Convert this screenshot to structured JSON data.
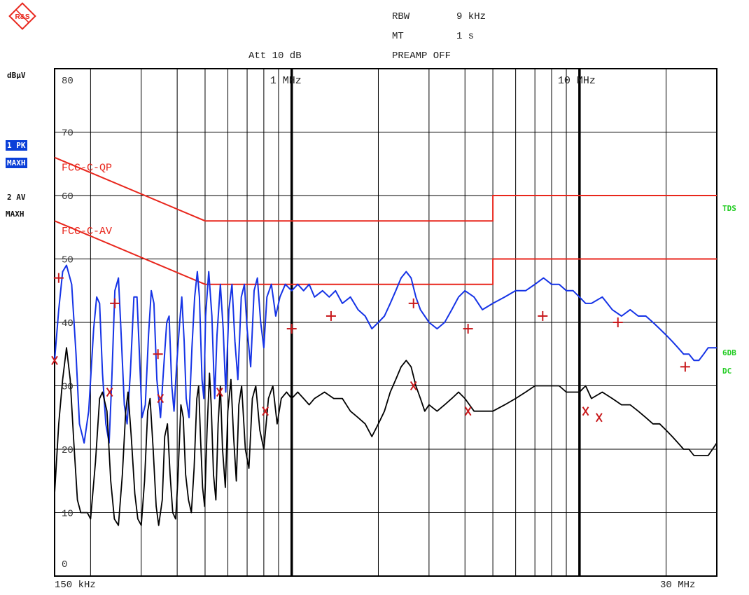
{
  "header": {
    "logo_text": "R&S",
    "att": "Att 10 dB",
    "rbw_label": "RBW",
    "rbw_value": "9 kHz",
    "mt_label": "MT",
    "mt_value": "1 s",
    "preamp": "PREAMP OFF"
  },
  "side_panel": {
    "unit": "dBµV",
    "trace1_line1": "1 PK",
    "trace1_line2": "MAXH",
    "trace2_line1": "2 AV",
    "trace2_line2": "MAXH",
    "right_label_1": "TDS",
    "right_label_2a": "6DB",
    "right_label_2b": "DC"
  },
  "colors": {
    "pk_trace": "#1533e6",
    "av_trace": "#000000",
    "limits": "#e8261c",
    "markers": "#c8191c",
    "side_labels": "#22cc22",
    "grid": "#000000"
  },
  "chart_data": {
    "type": "line",
    "x_scale": "log",
    "xlim_hz": [
      150000,
      30000000
    ],
    "ylim": [
      0,
      80
    ],
    "ylabel": "dBµV",
    "x_start_label": "150 kHz",
    "x_stop_label": "30 MHz",
    "decade_labels": [
      {
        "freq_hz": 1000000,
        "label": "1 MHz"
      },
      {
        "freq_hz": 10000000,
        "label": "10 MHz"
      }
    ],
    "y_ticks": [
      0,
      10,
      20,
      30,
      40,
      50,
      60,
      70,
      80
    ],
    "grid": true,
    "limit_lines": [
      {
        "name": "FCC-C-QP",
        "points": [
          [
            150000,
            66
          ],
          [
            500000,
            56
          ],
          [
            5000000,
            56
          ],
          [
            5000000,
            60
          ],
          [
            30000000,
            60
          ]
        ]
      },
      {
        "name": "FCC-C-AV",
        "points": [
          [
            150000,
            56
          ],
          [
            500000,
            46
          ],
          [
            5000000,
            46
          ],
          [
            5000000,
            50
          ],
          [
            30000000,
            50
          ]
        ]
      }
    ],
    "series": [
      {
        "name": "1 PK MAXH",
        "points": [
          [
            150000,
            34
          ],
          [
            155000,
            42
          ],
          [
            160000,
            48
          ],
          [
            165000,
            49
          ],
          [
            172000,
            46
          ],
          [
            178000,
            35
          ],
          [
            183000,
            24
          ],
          [
            190000,
            21
          ],
          [
            197000,
            26
          ],
          [
            205000,
            39
          ],
          [
            210000,
            44
          ],
          [
            215000,
            43
          ],
          [
            220000,
            32
          ],
          [
            226000,
            24
          ],
          [
            232000,
            21
          ],
          [
            237000,
            31
          ],
          [
            243000,
            45
          ],
          [
            250000,
            47
          ],
          [
            255000,
            39
          ],
          [
            262000,
            27
          ],
          [
            268000,
            24
          ],
          [
            275000,
            32
          ],
          [
            283000,
            44
          ],
          [
            290000,
            44
          ],
          [
            295000,
            36
          ],
          [
            302000,
            25
          ],
          [
            310000,
            27
          ],
          [
            318000,
            38
          ],
          [
            325000,
            45
          ],
          [
            332000,
            43
          ],
          [
            340000,
            31
          ],
          [
            350000,
            25
          ],
          [
            358000,
            32
          ],
          [
            368000,
            40
          ],
          [
            375000,
            41
          ],
          [
            383000,
            30
          ],
          [
            390000,
            26
          ],
          [
            398000,
            33
          ],
          [
            408000,
            40
          ],
          [
            415000,
            44
          ],
          [
            423000,
            37
          ],
          [
            430000,
            28
          ],
          [
            440000,
            25
          ],
          [
            450000,
            36
          ],
          [
            460000,
            44
          ],
          [
            470000,
            48
          ],
          [
            478000,
            44
          ],
          [
            488000,
            31
          ],
          [
            495000,
            28
          ],
          [
            502000,
            41
          ],
          [
            515000,
            48
          ],
          [
            528000,
            41
          ],
          [
            540000,
            28
          ],
          [
            550000,
            38
          ],
          [
            565000,
            46
          ],
          [
            578000,
            39
          ],
          [
            590000,
            29
          ],
          [
            605000,
            42
          ],
          [
            620000,
            46
          ],
          [
            635000,
            37
          ],
          [
            650000,
            31
          ],
          [
            668000,
            44
          ],
          [
            685000,
            46
          ],
          [
            700000,
            39
          ],
          [
            720000,
            33
          ],
          [
            740000,
            45
          ],
          [
            760000,
            47
          ],
          [
            780000,
            40
          ],
          [
            800000,
            36
          ],
          [
            820000,
            44
          ],
          [
            850000,
            46
          ],
          [
            880000,
            41
          ],
          [
            910000,
            44
          ],
          [
            950000,
            46
          ],
          [
            1000000,
            45
          ],
          [
            1050000,
            46
          ],
          [
            1100000,
            45
          ],
          [
            1150000,
            46
          ],
          [
            1200000,
            44
          ],
          [
            1280000,
            45
          ],
          [
            1350000,
            44
          ],
          [
            1420000,
            45
          ],
          [
            1500000,
            43
          ],
          [
            1600000,
            44
          ],
          [
            1700000,
            42
          ],
          [
            1800000,
            41
          ],
          [
            1900000,
            39
          ],
          [
            2000000,
            40
          ],
          [
            2100000,
            41
          ],
          [
            2200000,
            43
          ],
          [
            2300000,
            45
          ],
          [
            2400000,
            47
          ],
          [
            2500000,
            48
          ],
          [
            2600000,
            47
          ],
          [
            2700000,
            44
          ],
          [
            2800000,
            42
          ],
          [
            2900000,
            41
          ],
          [
            3000000,
            40
          ],
          [
            3200000,
            39
          ],
          [
            3400000,
            40
          ],
          [
            3600000,
            42
          ],
          [
            3800000,
            44
          ],
          [
            4000000,
            45
          ],
          [
            4300000,
            44
          ],
          [
            4600000,
            42
          ],
          [
            5000000,
            43
          ],
          [
            5500000,
            44
          ],
          [
            6000000,
            45
          ],
          [
            6500000,
            45
          ],
          [
            7000000,
            46
          ],
          [
            7500000,
            47
          ],
          [
            8000000,
            46
          ],
          [
            8500000,
            46
          ],
          [
            9000000,
            45
          ],
          [
            9500000,
            45
          ],
          [
            10000000,
            44
          ],
          [
            10500000,
            43
          ],
          [
            11000000,
            43
          ],
          [
            12000000,
            44
          ],
          [
            13000000,
            42
          ],
          [
            14000000,
            41
          ],
          [
            15000000,
            42
          ],
          [
            16000000,
            41
          ],
          [
            17000000,
            41
          ],
          [
            18000000,
            40
          ],
          [
            19000000,
            39
          ],
          [
            20000000,
            38
          ],
          [
            21000000,
            37
          ],
          [
            22000000,
            36
          ],
          [
            23000000,
            35
          ],
          [
            24000000,
            35
          ],
          [
            25000000,
            34
          ],
          [
            26000000,
            34
          ],
          [
            27000000,
            35
          ],
          [
            28000000,
            36
          ],
          [
            29000000,
            36
          ],
          [
            30000000,
            36
          ]
        ]
      },
      {
        "name": "2 AV MAXH",
        "points": [
          [
            150000,
            13
          ],
          [
            155000,
            24
          ],
          [
            160000,
            31
          ],
          [
            165000,
            36
          ],
          [
            170000,
            31
          ],
          [
            175000,
            21
          ],
          [
            180000,
            12
          ],
          [
            185000,
            10
          ],
          [
            195000,
            10
          ],
          [
            200000,
            9
          ],
          [
            208000,
            18
          ],
          [
            215000,
            28
          ],
          [
            220000,
            29
          ],
          [
            228000,
            26
          ],
          [
            235000,
            15
          ],
          [
            242000,
            9
          ],
          [
            250000,
            8
          ],
          [
            258000,
            16
          ],
          [
            265000,
            26
          ],
          [
            270000,
            29
          ],
          [
            277000,
            22
          ],
          [
            285000,
            13
          ],
          [
            292000,
            9
          ],
          [
            300000,
            8
          ],
          [
            308000,
            15
          ],
          [
            316000,
            26
          ],
          [
            322000,
            28
          ],
          [
            330000,
            20
          ],
          [
            338000,
            11
          ],
          [
            345000,
            8
          ],
          [
            355000,
            12
          ],
          [
            362000,
            22
          ],
          [
            370000,
            24
          ],
          [
            378000,
            16
          ],
          [
            386000,
            10
          ],
          [
            395000,
            9
          ],
          [
            402000,
            15
          ],
          [
            412000,
            27
          ],
          [
            420000,
            25
          ],
          [
            428000,
            16
          ],
          [
            438000,
            12
          ],
          [
            448000,
            10
          ],
          [
            458000,
            17
          ],
          [
            468000,
            28
          ],
          [
            475000,
            30
          ],
          [
            482000,
            22
          ],
          [
            490000,
            14
          ],
          [
            498000,
            11
          ],
          [
            508000,
            23
          ],
          [
            518000,
            32
          ],
          [
            525000,
            27
          ],
          [
            535000,
            16
          ],
          [
            545000,
            12
          ],
          [
            555000,
            24
          ],
          [
            565000,
            30
          ],
          [
            575000,
            20
          ],
          [
            588000,
            14
          ],
          [
            600000,
            26
          ],
          [
            615000,
            31
          ],
          [
            628000,
            22
          ],
          [
            642000,
            15
          ],
          [
            655000,
            27
          ],
          [
            670000,
            30
          ],
          [
            690000,
            20
          ],
          [
            710000,
            17
          ],
          [
            730000,
            28
          ],
          [
            750000,
            30
          ],
          [
            775000,
            23
          ],
          [
            800000,
            20
          ],
          [
            830000,
            28
          ],
          [
            860000,
            30
          ],
          [
            890000,
            24
          ],
          [
            920000,
            28
          ],
          [
            960000,
            29
          ],
          [
            1000000,
            28
          ],
          [
            1050000,
            29
          ],
          [
            1100000,
            28
          ],
          [
            1150000,
            27
          ],
          [
            1200000,
            28
          ],
          [
            1300000,
            29
          ],
          [
            1400000,
            28
          ],
          [
            1500000,
            28
          ],
          [
            1600000,
            26
          ],
          [
            1700000,
            25
          ],
          [
            1800000,
            24
          ],
          [
            1900000,
            22
          ],
          [
            2000000,
            24
          ],
          [
            2100000,
            26
          ],
          [
            2200000,
            29
          ],
          [
            2300000,
            31
          ],
          [
            2400000,
            33
          ],
          [
            2500000,
            34
          ],
          [
            2600000,
            33
          ],
          [
            2700000,
            30
          ],
          [
            2800000,
            28
          ],
          [
            2900000,
            26
          ],
          [
            3000000,
            27
          ],
          [
            3200000,
            26
          ],
          [
            3400000,
            27
          ],
          [
            3600000,
            28
          ],
          [
            3800000,
            29
          ],
          [
            4000000,
            28
          ],
          [
            4300000,
            26
          ],
          [
            4600000,
            26
          ],
          [
            5000000,
            26
          ],
          [
            5500000,
            27
          ],
          [
            6000000,
            28
          ],
          [
            6500000,
            29
          ],
          [
            7000000,
            30
          ],
          [
            7500000,
            30
          ],
          [
            8000000,
            30
          ],
          [
            8500000,
            30
          ],
          [
            9000000,
            29
          ],
          [
            9500000,
            29
          ],
          [
            10000000,
            29
          ],
          [
            10500000,
            30
          ],
          [
            11000000,
            28
          ],
          [
            12000000,
            29
          ],
          [
            13000000,
            28
          ],
          [
            14000000,
            27
          ],
          [
            15000000,
            27
          ],
          [
            16000000,
            26
          ],
          [
            17000000,
            25
          ],
          [
            18000000,
            24
          ],
          [
            19000000,
            24
          ],
          [
            20000000,
            23
          ],
          [
            21000000,
            22
          ],
          [
            22000000,
            21
          ],
          [
            23000000,
            20
          ],
          [
            24000000,
            20
          ],
          [
            25000000,
            19
          ],
          [
            26000000,
            19
          ],
          [
            27000000,
            19
          ],
          [
            28000000,
            19
          ],
          [
            29000000,
            20
          ],
          [
            30000000,
            21
          ]
        ]
      }
    ],
    "qp_markers": [
      [
        155000,
        47
      ],
      [
        243000,
        43
      ],
      [
        343000,
        35
      ],
      [
        1000000,
        39
      ],
      [
        1370000,
        41
      ],
      [
        2650000,
        43
      ],
      [
        4100000,
        39
      ],
      [
        7450000,
        41
      ],
      [
        13600000,
        40
      ],
      [
        23300000,
        33
      ]
    ],
    "av_markers": [
      [
        150000,
        34
      ],
      [
        233000,
        29
      ],
      [
        350000,
        28
      ],
      [
        562000,
        29
      ],
      [
        810000,
        26
      ],
      [
        2650000,
        30
      ],
      [
        4100000,
        26
      ],
      [
        10500000,
        26
      ],
      [
        11700000,
        25
      ]
    ]
  }
}
